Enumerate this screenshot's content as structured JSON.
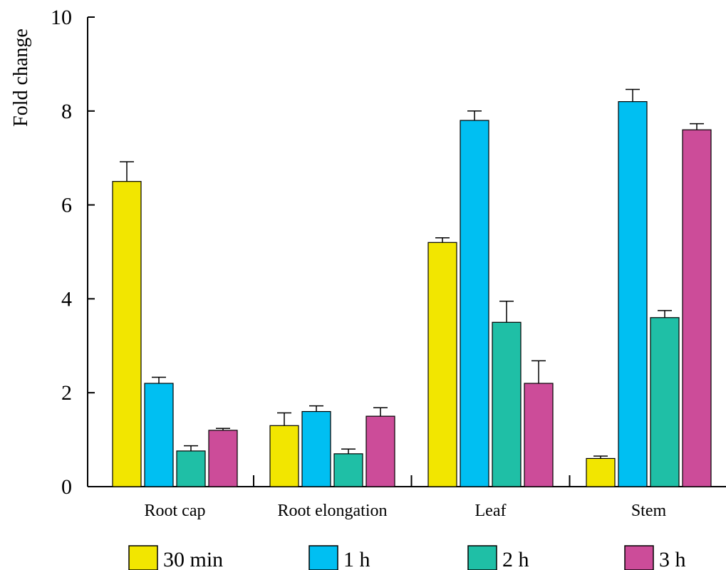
{
  "chart_data": {
    "type": "bar",
    "title": "",
    "xlabel": "",
    "ylabel": "Fold change",
    "ylim": [
      0,
      10
    ],
    "yticks": [
      "0",
      "2",
      "4",
      "6",
      "8",
      "10"
    ],
    "categories": [
      "Root cap",
      "Root elongation",
      "Leaf",
      "Stem"
    ],
    "grid": false,
    "legend_position": "bottom",
    "series": [
      {
        "name": "30 min",
        "color": "#f2e600",
        "values": [
          6.5,
          1.3,
          5.2,
          0.6
        ],
        "errors": [
          0.42,
          0.27,
          0.1,
          0.05
        ]
      },
      {
        "name": "1 h",
        "color": "#00bff2",
        "values": [
          2.2,
          1.6,
          7.8,
          8.2
        ],
        "errors": [
          0.13,
          0.12,
          0.2,
          0.26
        ]
      },
      {
        "name": "2 h",
        "color": "#1fbfa6",
        "values": [
          0.76,
          0.7,
          3.5,
          3.6
        ],
        "errors": [
          0.11,
          0.1,
          0.45,
          0.15
        ]
      },
      {
        "name": "3 h",
        "color": "#cc4c99",
        "values": [
          1.2,
          1.5,
          2.2,
          7.6
        ],
        "errors": [
          0.04,
          0.18,
          0.48,
          0.13
        ]
      }
    ]
  }
}
